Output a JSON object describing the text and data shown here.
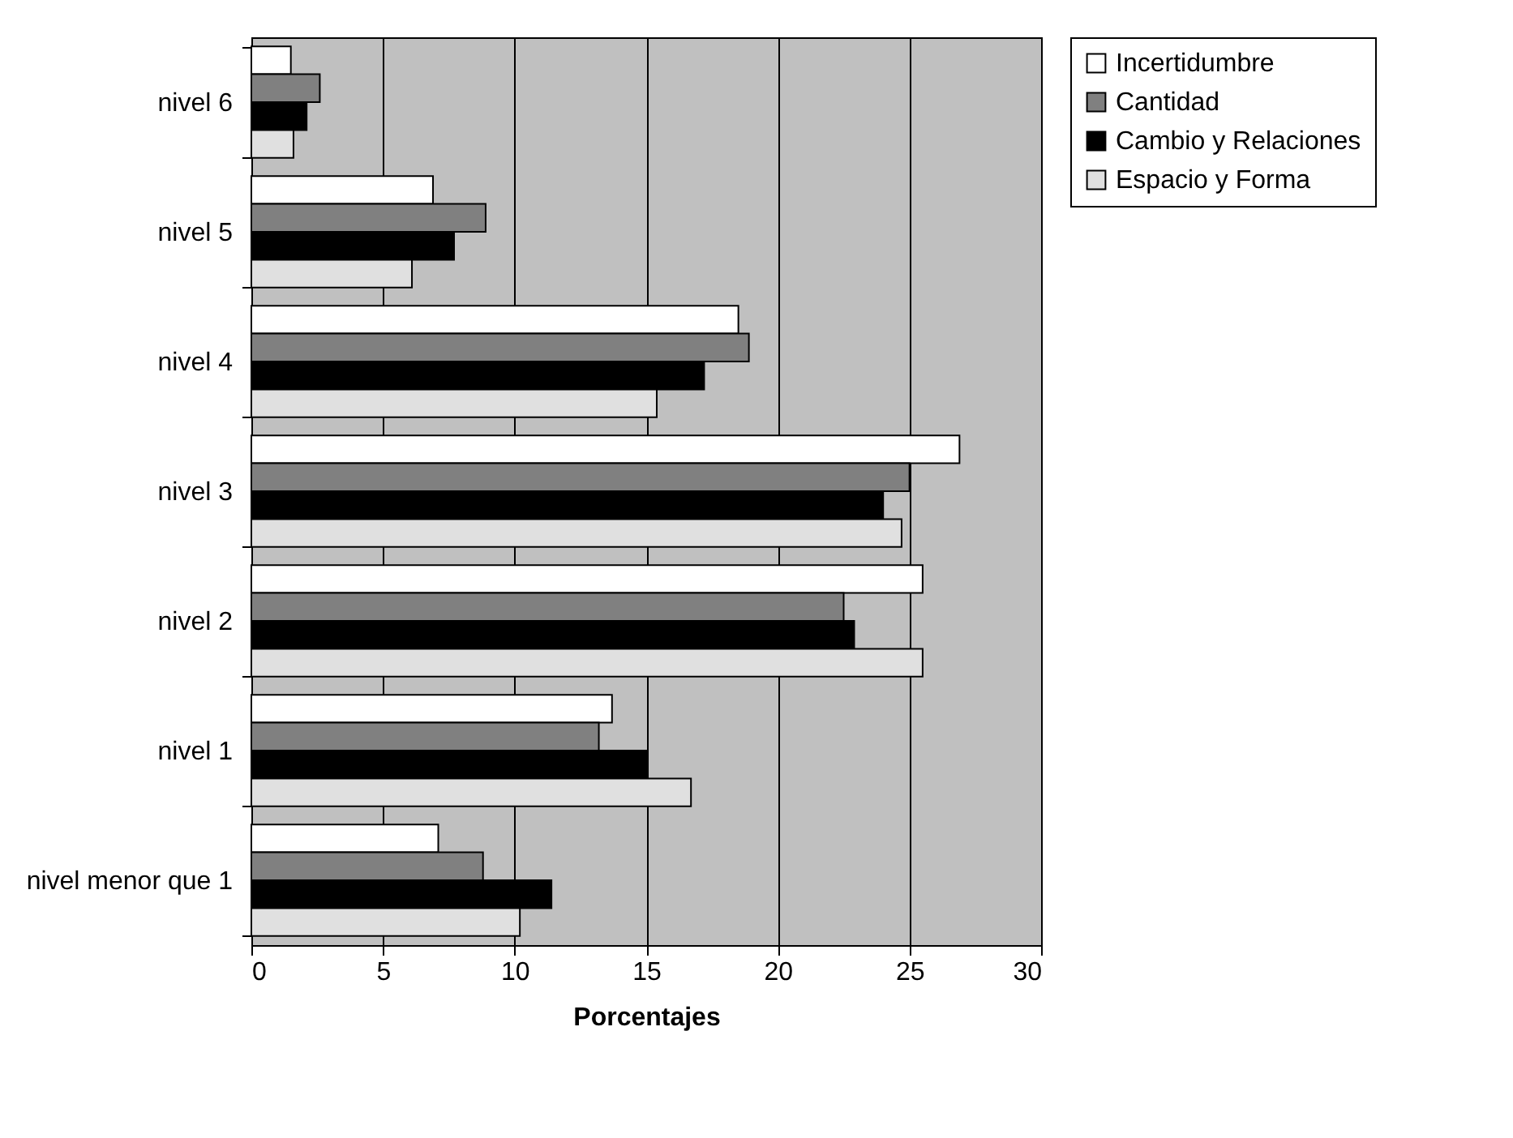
{
  "chart_data": {
    "type": "bar",
    "orientation": "horizontal",
    "xlabel": "Porcentajes",
    "categories": [
      "nivel 6",
      "nivel 5",
      "nivel 4",
      "nivel 3",
      "nivel 2",
      "nivel 1",
      "nivel menor que 1"
    ],
    "series": [
      {
        "name": "Incertidumbre",
        "color": "#ffffff",
        "values": [
          1.5,
          6.9,
          18.5,
          26.9,
          25.5,
          13.7,
          7.1
        ]
      },
      {
        "name": "Cantidad",
        "color": "#808080",
        "values": [
          2.6,
          8.9,
          18.9,
          25.0,
          22.5,
          13.2,
          8.8
        ]
      },
      {
        "name": "Cambio y Relaciones",
        "color": "#000000",
        "values": [
          2.1,
          7.7,
          17.2,
          24.0,
          22.9,
          15.0,
          11.4
        ]
      },
      {
        "name": "Espacio y Forma",
        "color": "#e0e0e0",
        "values": [
          1.6,
          6.1,
          15.4,
          24.7,
          25.5,
          16.7,
          10.2
        ]
      }
    ],
    "xlim": [
      0,
      30
    ],
    "xticks": [
      0,
      5,
      10,
      15,
      20,
      25,
      30
    ],
    "grid": "x",
    "legend": "right"
  }
}
